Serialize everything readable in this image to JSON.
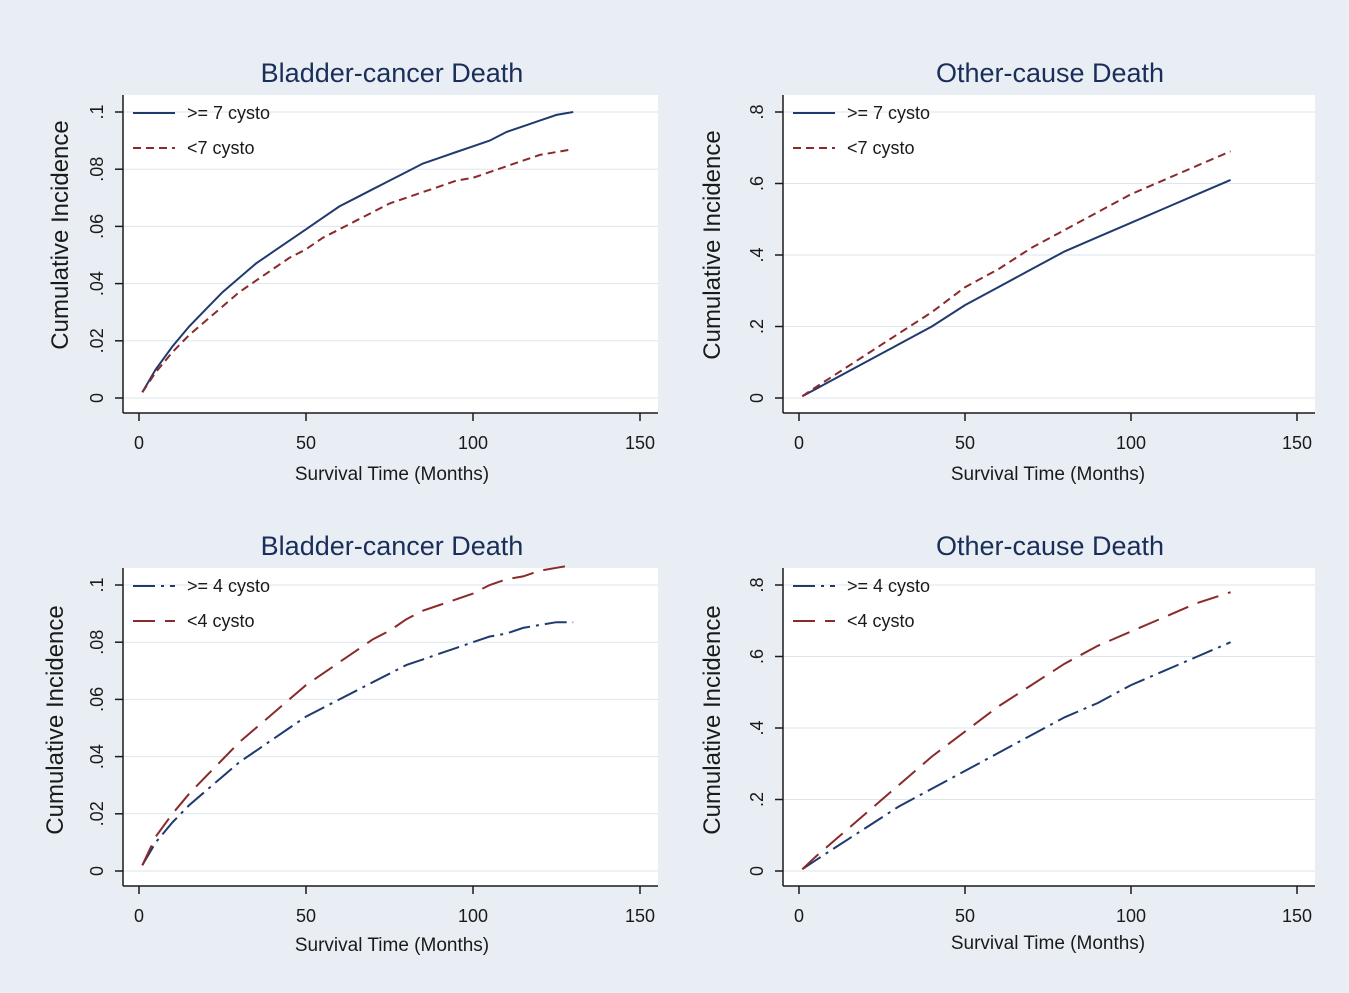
{
  "chart_data": [
    {
      "type": "line",
      "title": "Bladder-cancer Death",
      "xlabel": "Survival Time (Months)",
      "ylabel": "Cumulative Incidence",
      "xlim": [
        0,
        150
      ],
      "ylim": [
        0,
        0.1
      ],
      "xticks": [
        0,
        50,
        100,
        150
      ],
      "xtick_labels": [
        "0",
        "50",
        "100",
        "150"
      ],
      "yticks": [
        0,
        0.02,
        0.04,
        0.06,
        0.08,
        0.1
      ],
      "ytick_labels": [
        "0",
        ".02",
        ".04",
        ".06",
        ".08",
        ".1"
      ],
      "grid": true,
      "legend_position": "top-left",
      "series": [
        {
          "name": ">= 7 cysto",
          "color": "#1f3a6e",
          "dash": "solid",
          "x": [
            1,
            5,
            10,
            15,
            20,
            25,
            30,
            35,
            40,
            45,
            50,
            55,
            60,
            65,
            70,
            75,
            80,
            85,
            90,
            95,
            100,
            105,
            110,
            115,
            120,
            125,
            130
          ],
          "y": [
            0.002,
            0.01,
            0.018,
            0.025,
            0.031,
            0.037,
            0.042,
            0.047,
            0.051,
            0.055,
            0.059,
            0.063,
            0.067,
            0.07,
            0.073,
            0.076,
            0.079,
            0.082,
            0.084,
            0.086,
            0.088,
            0.09,
            0.093,
            0.095,
            0.097,
            0.099,
            0.1
          ]
        },
        {
          "name": "<7 cysto",
          "color": "#8b2a2a",
          "dash": "8,5",
          "x": [
            1,
            5,
            10,
            15,
            20,
            25,
            30,
            35,
            40,
            45,
            50,
            55,
            60,
            65,
            70,
            75,
            80,
            85,
            90,
            95,
            100,
            105,
            110,
            115,
            120,
            125,
            130
          ],
          "y": [
            0.002,
            0.009,
            0.016,
            0.022,
            0.027,
            0.032,
            0.037,
            0.041,
            0.045,
            0.049,
            0.052,
            0.056,
            0.059,
            0.062,
            0.065,
            0.068,
            0.07,
            0.072,
            0.074,
            0.076,
            0.077,
            0.079,
            0.081,
            0.083,
            0.085,
            0.086,
            0.087
          ]
        }
      ]
    },
    {
      "type": "line",
      "title": "Other-cause Death",
      "xlabel": "Survival Time (Months)",
      "ylabel": "Cumulative Incidence",
      "xlim": [
        0,
        150
      ],
      "ylim": [
        0,
        0.8
      ],
      "xticks": [
        0,
        50,
        100,
        150
      ],
      "xtick_labels": [
        "0",
        "50",
        "100",
        "150"
      ],
      "yticks": [
        0,
        0.2,
        0.4,
        0.6,
        0.8
      ],
      "ytick_labels": [
        "0",
        ".2",
        ".4",
        ".6",
        ".8"
      ],
      "grid": true,
      "legend_position": "top-left",
      "series": [
        {
          "name": ">= 7 cysto",
          "color": "#1f3a6e",
          "dash": "solid",
          "x": [
            1,
            5,
            10,
            20,
            30,
            40,
            50,
            60,
            70,
            80,
            90,
            100,
            110,
            120,
            130
          ],
          "y": [
            0.005,
            0.025,
            0.05,
            0.1,
            0.15,
            0.2,
            0.26,
            0.31,
            0.36,
            0.41,
            0.45,
            0.49,
            0.53,
            0.57,
            0.61
          ]
        },
        {
          "name": "<7 cysto",
          "color": "#8b2a2a",
          "dash": "8,5",
          "x": [
            1,
            5,
            10,
            20,
            30,
            40,
            50,
            60,
            70,
            80,
            90,
            100,
            110,
            120,
            130
          ],
          "y": [
            0.005,
            0.03,
            0.06,
            0.12,
            0.18,
            0.24,
            0.31,
            0.36,
            0.42,
            0.47,
            0.52,
            0.57,
            0.61,
            0.65,
            0.69
          ]
        }
      ]
    },
    {
      "type": "line",
      "title": "Bladder-cancer Death",
      "xlabel": "Survival Time (Months)",
      "ylabel": "Cumulative Incidence",
      "xlim": [
        0,
        150
      ],
      "ylim": [
        0,
        0.1
      ],
      "xticks": [
        0,
        50,
        100,
        150
      ],
      "xtick_labels": [
        "0",
        "50",
        "100",
        "150"
      ],
      "yticks": [
        0,
        0.02,
        0.04,
        0.06,
        0.08,
        0.1
      ],
      "ytick_labels": [
        "0",
        ".02",
        ".04",
        ".06",
        ".08",
        ".1"
      ],
      "grid": true,
      "legend_position": "top-left",
      "series": [
        {
          "name": ">= 4 cysto",
          "color": "#1f3a6e",
          "dash": "22,6,3,6",
          "x": [
            1,
            5,
            10,
            15,
            20,
            25,
            30,
            35,
            40,
            45,
            50,
            55,
            60,
            65,
            70,
            75,
            80,
            85,
            90,
            95,
            100,
            105,
            110,
            115,
            120,
            125,
            130
          ],
          "y": [
            0.002,
            0.01,
            0.017,
            0.023,
            0.028,
            0.033,
            0.038,
            0.042,
            0.046,
            0.05,
            0.054,
            0.057,
            0.06,
            0.063,
            0.066,
            0.069,
            0.072,
            0.074,
            0.076,
            0.078,
            0.08,
            0.082,
            0.083,
            0.085,
            0.086,
            0.087,
            0.087
          ]
        },
        {
          "name": "<4 cysto",
          "color": "#8b2a2a",
          "dash": "22,10",
          "x": [
            1,
            5,
            10,
            15,
            20,
            25,
            30,
            35,
            40,
            45,
            50,
            55,
            60,
            65,
            70,
            75,
            80,
            85,
            90,
            95,
            100,
            105,
            110,
            115,
            120,
            125,
            130
          ],
          "y": [
            0.002,
            0.012,
            0.02,
            0.027,
            0.033,
            0.039,
            0.045,
            0.05,
            0.055,
            0.06,
            0.065,
            0.069,
            0.073,
            0.077,
            0.081,
            0.084,
            0.088,
            0.091,
            0.093,
            0.095,
            0.097,
            0.1,
            0.102,
            0.103,
            0.105,
            0.106,
            0.107
          ]
        }
      ]
    },
    {
      "type": "line",
      "title": "Other-cause Death",
      "xlabel": "Survival Time (Months)",
      "ylabel": "Cumulative Incidence",
      "xlim": [
        0,
        150
      ],
      "ylim": [
        0,
        0.8
      ],
      "xticks": [
        0,
        50,
        100,
        150
      ],
      "xtick_labels": [
        "0",
        "50",
        "100",
        "150"
      ],
      "yticks": [
        0,
        0.2,
        0.4,
        0.6,
        0.8
      ],
      "ytick_labels": [
        "0",
        ".2",
        ".4",
        ".6",
        ".8"
      ],
      "grid": true,
      "legend_position": "top-left",
      "series": [
        {
          "name": ">= 4 cysto",
          "color": "#1f3a6e",
          "dash": "22,6,3,6",
          "x": [
            1,
            5,
            10,
            20,
            30,
            40,
            50,
            60,
            70,
            80,
            90,
            100,
            110,
            120,
            130
          ],
          "y": [
            0.005,
            0.03,
            0.06,
            0.12,
            0.18,
            0.23,
            0.28,
            0.33,
            0.38,
            0.43,
            0.47,
            0.52,
            0.56,
            0.6,
            0.64
          ]
        },
        {
          "name": "<4 cysto",
          "color": "#8b2a2a",
          "dash": "22,10",
          "x": [
            1,
            5,
            10,
            20,
            30,
            40,
            50,
            60,
            70,
            80,
            90,
            100,
            110,
            120,
            130
          ],
          "y": [
            0.005,
            0.04,
            0.08,
            0.16,
            0.24,
            0.32,
            0.39,
            0.46,
            0.52,
            0.58,
            0.63,
            0.67,
            0.71,
            0.75,
            0.78
          ]
        }
      ]
    }
  ],
  "style": {
    "outer_background": "#e9eef4",
    "plot_background": "#ffffff",
    "grid_color": "#dde5ee",
    "axis_color": "#1a1a1a"
  }
}
